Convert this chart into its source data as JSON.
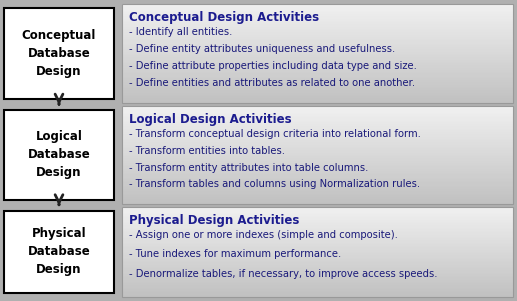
{
  "box_labels": [
    "Conceptual\nDatabase\nDesign",
    "Logical\nDatabase\nDesign",
    "Physical\nDatabase\nDesign"
  ],
  "title_color": "#1c1c8f",
  "bullet_color": "#1a1a7a",
  "arrow_color": "#222222",
  "bg_color": "#b0b0b0",
  "box_face_color": "#ffffff",
  "box_edge_color": "#000000",
  "panel_top_color": "#f0f0f0",
  "panel_bot_color": "#c0c0c0",
  "panel_edge_color": "#999999",
  "titles": [
    "Conceptual Design Activities",
    "Logical Design Activities",
    "Physical Design Activities"
  ],
  "bullets": [
    [
      "- Identify all entities.",
      "- Define entity attributes uniqueness and usefulness.",
      "- Define attribute properties including data type and size.",
      "- Define entities and attributes as related to one another."
    ],
    [
      "- Transform conceptual design criteria into relational form.",
      "- Transform entities into tables.",
      "- Transform entity attributes into table columns.",
      "- Transform tables and columns using Normalization rules."
    ],
    [
      "- Assign one or more indexes (simple and composite).",
      "- Tune indexes for maximum performance.",
      "- Denormalize tables, if necessary, to improve access speeds."
    ]
  ],
  "fig_w": 5.17,
  "fig_h": 3.01,
  "dpi": 100
}
